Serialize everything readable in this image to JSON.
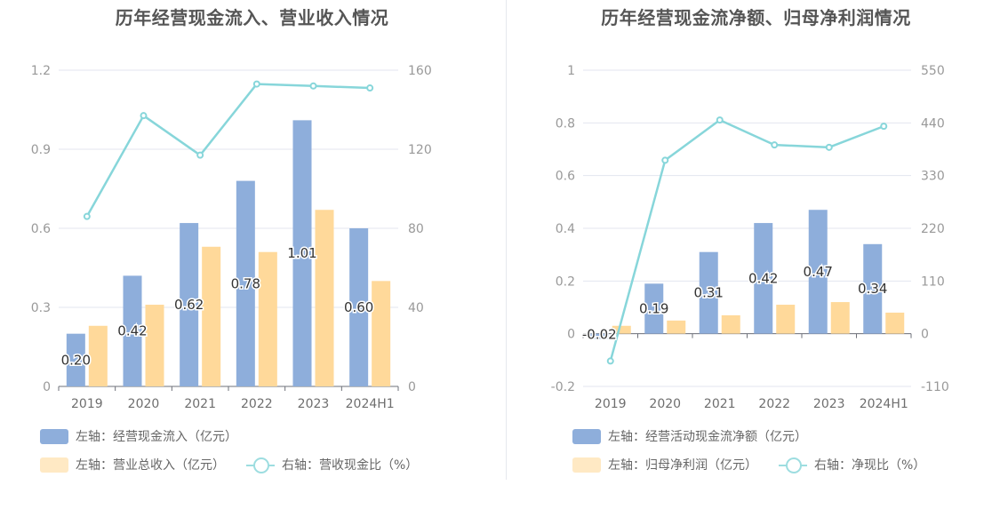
{
  "charts": [
    {
      "title": "历年经营现金流入、营业收入情况",
      "legend": {
        "bar1": "左轴：经营现金流入（亿元）",
        "bar2": "左轴：营业总收入（亿元）",
        "line": "右轴：营收现金比（%）"
      }
    },
    {
      "title": "历年经营现金流净额、归母净利润情况",
      "legend": {
        "bar1": "左轴：经营活动现金流净额（亿元）",
        "bar2": "左轴：归母净利润（亿元）",
        "line": "右轴：净现比（%）"
      }
    }
  ],
  "colors": {
    "bar1": "#8eaedb",
    "bar2": "#ffd99a",
    "line": "#87d6da",
    "grid": "#e3e6ef",
    "axis": "#999999"
  },
  "chart_data": [
    {
      "type": "bar",
      "title": "历年经营现金流入、营业收入情况",
      "categories": [
        "2019",
        "2020",
        "2021",
        "2022",
        "2023",
        "2024H1"
      ],
      "left_axis": {
        "ticks": [
          "0",
          "0.3",
          "0.6",
          "0.9",
          "1.2"
        ],
        "ylim": [
          0,
          1.2
        ]
      },
      "right_axis": {
        "ticks": [
          "0",
          "40",
          "80",
          "120",
          "160"
        ],
        "ylim": [
          0,
          160
        ]
      },
      "series": [
        {
          "name": "左轴：经营现金流入（亿元）",
          "type": "bar",
          "axis": "left",
          "values": [
            0.2,
            0.42,
            0.62,
            0.78,
            1.01,
            0.6
          ],
          "labels": [
            "0.20",
            "0.42",
            "0.62",
            "0.78",
            "1.01",
            "0.60"
          ]
        },
        {
          "name": "左轴：营业总收入（亿元）",
          "type": "bar",
          "axis": "left",
          "values": [
            0.23,
            0.31,
            0.53,
            0.51,
            0.67,
            0.4
          ]
        },
        {
          "name": "右轴：营收现金比（%）",
          "type": "line",
          "axis": "right",
          "values": [
            86,
            137,
            117,
            153,
            152,
            151
          ]
        }
      ]
    },
    {
      "type": "bar",
      "title": "历年经营现金流净额、归母净利润情况",
      "categories": [
        "2019",
        "2020",
        "2021",
        "2022",
        "2023",
        "2024H1"
      ],
      "left_axis": {
        "ticks": [
          "-0.2",
          "0",
          "0.2",
          "0.4",
          "0.6",
          "0.8",
          "1"
        ],
        "ylim": [
          -0.2,
          1
        ]
      },
      "right_axis": {
        "ticks": [
          "-110",
          "0",
          "110",
          "220",
          "330",
          "440",
          "550"
        ],
        "ylim": [
          -110,
          550
        ]
      },
      "series": [
        {
          "name": "左轴：经营活动现金流净额（亿元）",
          "type": "bar",
          "axis": "left",
          "values": [
            -0.02,
            0.19,
            0.31,
            0.42,
            0.47,
            0.34
          ],
          "labels": [
            "-0.02",
            "0.19",
            "0.31",
            "0.42",
            "0.47",
            "0.34"
          ]
        },
        {
          "name": "左轴：归母净利润（亿元）",
          "type": "bar",
          "axis": "left",
          "values": [
            0.03,
            0.05,
            0.07,
            0.11,
            0.12,
            0.08
          ]
        },
        {
          "name": "右轴：净现比（%）",
          "type": "line",
          "axis": "right",
          "values": [
            -57,
            362,
            446,
            394,
            389,
            433
          ]
        }
      ]
    }
  ]
}
